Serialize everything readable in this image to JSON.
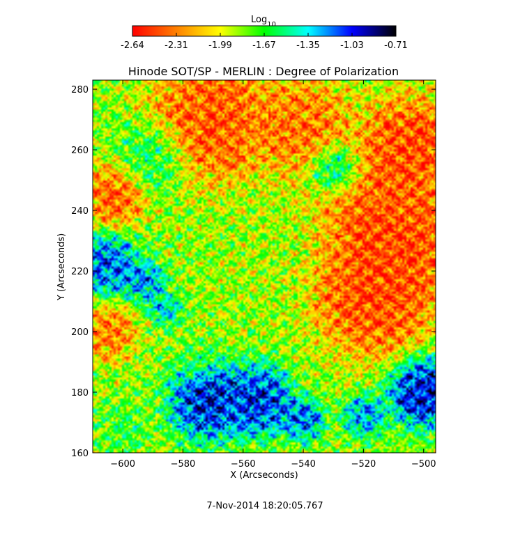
{
  "chart_data": {
    "type": "heatmap",
    "title": "Hinode SOT/SP - MERLIN : Degree of Polarization",
    "xlabel": "X (Arcseconds)",
    "ylabel": "Y (Arcseconds)",
    "xlim": [
      -610,
      -496
    ],
    "ylim": [
      160,
      283
    ],
    "x_ticks": [
      -600,
      -580,
      -560,
      -540,
      -520,
      -500
    ],
    "y_ticks": [
      160,
      180,
      200,
      220,
      240,
      260,
      280
    ],
    "colorbar": {
      "label_base": "Log",
      "label_sub": "10",
      "ticks": [
        "-2.64",
        "-2.31",
        "-1.99",
        "-1.67",
        "-1.35",
        "-1.03",
        "-0.71"
      ],
      "range": [
        -2.64,
        -0.71
      ],
      "colors": [
        "#ff0000",
        "#ff8000",
        "#ffff00",
        "#00ff00",
        "#00ffff",
        "#0000ff",
        "#000000"
      ]
    },
    "regions": [
      {
        "x": -570,
        "y": 270,
        "r": 18,
        "value": -2.55
      },
      {
        "x": -540,
        "y": 268,
        "r": 14,
        "value": -2.45
      },
      {
        "x": -505,
        "y": 262,
        "r": 14,
        "value": -2.6
      },
      {
        "x": -510,
        "y": 232,
        "r": 22,
        "value": -2.6
      },
      {
        "x": -517,
        "y": 210,
        "r": 16,
        "value": -2.58
      },
      {
        "x": -603,
        "y": 245,
        "r": 9,
        "value": -2.5
      },
      {
        "x": -605,
        "y": 200,
        "r": 8,
        "value": -2.45
      },
      {
        "x": -550,
        "y": 225,
        "r": 12,
        "value": -1.9
      },
      {
        "x": -590,
        "y": 258,
        "r": 10,
        "value": -1.5
      },
      {
        "x": -530,
        "y": 254,
        "r": 7,
        "value": -1.3
      },
      {
        "x": -605,
        "y": 222,
        "r": 9,
        "value": -1.0
      },
      {
        "x": -593,
        "y": 217,
        "r": 6,
        "value": -1.1
      },
      {
        "x": -586,
        "y": 208,
        "r": 5,
        "value": -1.25
      },
      {
        "x": -572,
        "y": 177,
        "r": 11,
        "value": -0.8
      },
      {
        "x": -555,
        "y": 177,
        "r": 10,
        "value": -0.85
      },
      {
        "x": -540,
        "y": 171,
        "r": 6,
        "value": -1.0
      },
      {
        "x": -500,
        "y": 180,
        "r": 10,
        "value": -0.75
      },
      {
        "x": -520,
        "y": 172,
        "r": 6,
        "value": -1.1
      },
      {
        "x": -600,
        "y": 168,
        "r": 7,
        "value": -1.6
      },
      {
        "x": -575,
        "y": 190,
        "r": 6,
        "value": -1.65
      }
    ],
    "background_value": -1.85
  },
  "footer": {
    "timestamp": "7-Nov-2014 18:20:05.767"
  }
}
